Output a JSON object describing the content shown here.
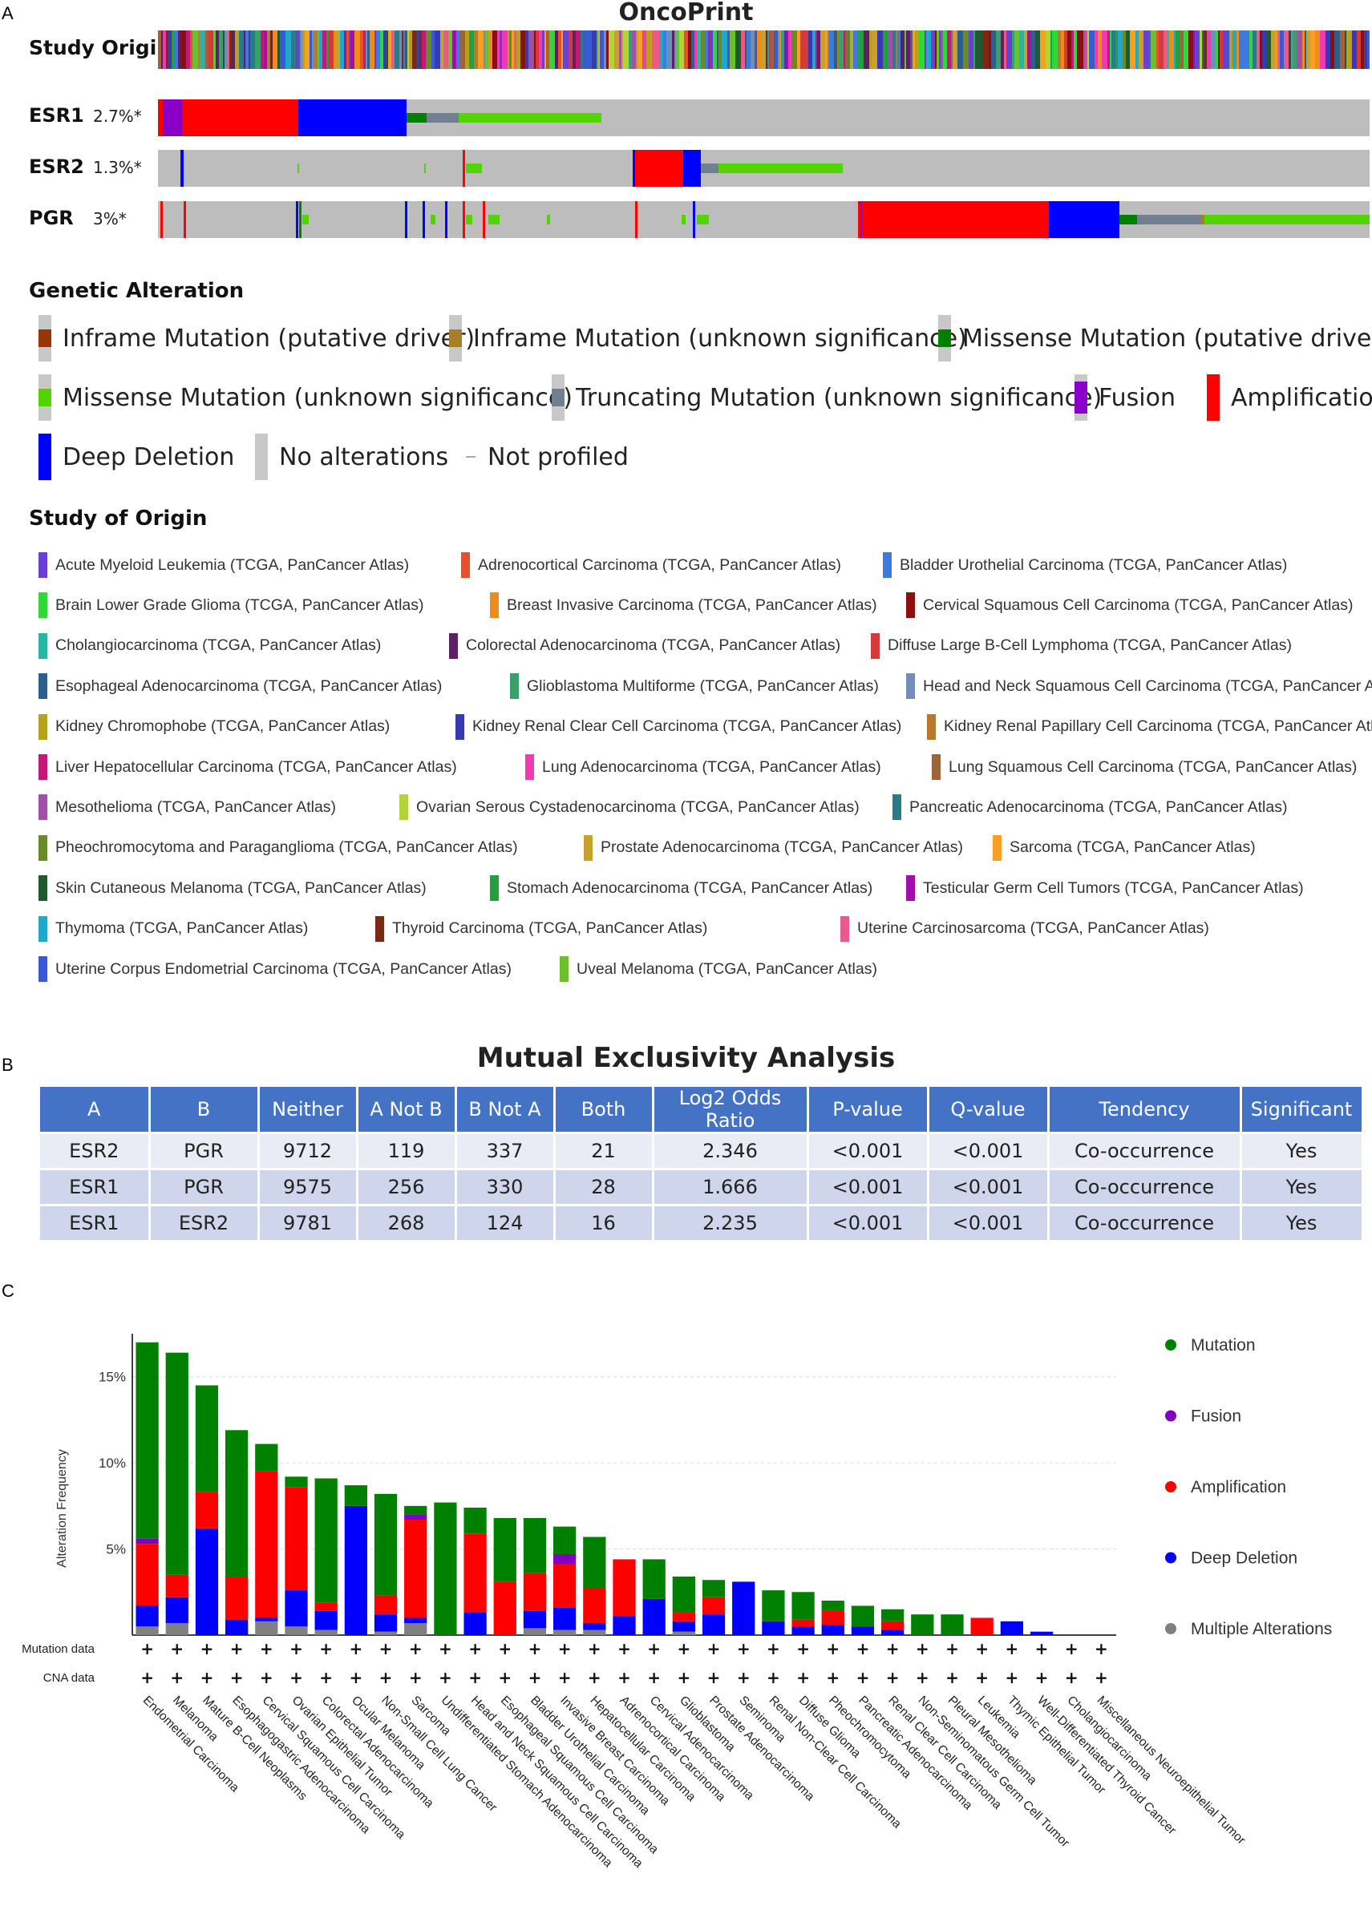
{
  "panel_labels": {
    "a": "A",
    "b": "B",
    "c": "C"
  },
  "oncoprint": {
    "title": "OncoPrint",
    "study_origin_label": "Study Origin",
    "genes": [
      {
        "name": "ESR1",
        "pct": "2.7%*"
      },
      {
        "name": "ESR2",
        "pct": "1.3%*"
      },
      {
        "name": "PGR",
        "pct": "3%*"
      }
    ],
    "colors": {
      "no_alteration": "#bdbdbd",
      "amplification": "#ff0000",
      "deep_deletion": "#0000ff",
      "fusion": "#8b00c9",
      "missense_putative": "#008000",
      "missense_unknown": "#53d400",
      "truncating_unknown": "#708090",
      "inframe_putative": "#993404",
      "inframe_unknown": "#a68028"
    }
  },
  "genetic_alteration": {
    "heading": "Genetic Alteration",
    "items": [
      {
        "label": "Inframe Mutation (putative driver)",
        "color": "#993404",
        "kind": "small"
      },
      {
        "label": "Inframe Mutation (unknown significance)",
        "color": "#a68028",
        "kind": "small"
      },
      {
        "label": "Missense Mutation (putative driver)",
        "color": "#008000",
        "kind": "small"
      },
      {
        "label": "Missense Mutation (unknown significance)",
        "color": "#53d400",
        "kind": "small"
      },
      {
        "label": "Truncating Mutation (unknown significance)",
        "color": "#708090",
        "kind": "small"
      },
      {
        "label": "Fusion",
        "color": "#8b00c9",
        "kind": "mid"
      },
      {
        "label": "Amplification",
        "color": "#ff0000",
        "kind": "full"
      },
      {
        "label": "Deep Deletion",
        "color": "#0000ff",
        "kind": "full"
      },
      {
        "label": "No alterations",
        "color": "#c8c8c8",
        "kind": "full"
      },
      {
        "label": "Not profiled",
        "color": "#ffffff",
        "kind": "dash"
      }
    ]
  },
  "study_of_origin": {
    "heading": "Study of Origin",
    "items": [
      {
        "label": "Acute Myeloid Leukemia (TCGA, PanCancer Atlas)",
        "color": "#6a3fd1"
      },
      {
        "label": "Adrenocortical Carcinoma (TCGA, PanCancer Atlas)",
        "color": "#e8502a"
      },
      {
        "label": "Bladder Urothelial Carcinoma (TCGA, PanCancer Atlas)",
        "color": "#3c7ae0"
      },
      {
        "label": "Brain Lower Grade Glioma (TCGA, PanCancer Atlas)",
        "color": "#33d63a"
      },
      {
        "label": "Breast Invasive Carcinoma (TCGA, PanCancer Atlas)",
        "color": "#f08a1c"
      },
      {
        "label": "Cervical Squamous Cell Carcinoma (TCGA, PanCancer Atlas)",
        "color": "#8a0f0f"
      },
      {
        "label": "Cholangiocarcinoma (TCGA, PanCancer Atlas)",
        "color": "#2bb3a6"
      },
      {
        "label": "Colorectal Adenocarcinoma (TCGA, PanCancer Atlas)",
        "color": "#5e1f66"
      },
      {
        "label": "Diffuse Large B-Cell Lymphoma (TCGA, PanCancer Atlas)",
        "color": "#d43a3a"
      },
      {
        "label": "Esophageal Adenocarcinoma (TCGA, PanCancer Atlas)",
        "color": "#2d5f8a"
      },
      {
        "label": "Glioblastoma Multiforme (TCGA, PanCancer Atlas)",
        "color": "#3aa06a"
      },
      {
        "label": "Head and Neck Squamous Cell Carcinoma (TCGA, PanCancer Atlas)",
        "color": "#6f8fb8"
      },
      {
        "label": "Kidney Chromophobe (TCGA, PanCancer Atlas)",
        "color": "#b5a020"
      },
      {
        "label": "Kidney Renal Clear Cell Carcinoma (TCGA, PanCancer Atlas)",
        "color": "#3a3ab0"
      },
      {
        "label": "Kidney Renal Papillary Cell Carcinoma (TCGA, PanCancer Atlas)",
        "color": "#b87a2a"
      },
      {
        "label": "Liver Hepatocellular Carcinoma (TCGA, PanCancer Atlas)",
        "color": "#c2187a"
      },
      {
        "label": "Lung Adenocarcinoma (TCGA, PanCancer Atlas)",
        "color": "#f03ab0"
      },
      {
        "label": "Lung Squamous Cell Carcinoma (TCGA, PanCancer Atlas)",
        "color": "#a0623a"
      },
      {
        "label": "Mesothelioma (TCGA, PanCancer Atlas)",
        "color": "#a050a8"
      },
      {
        "label": "Ovarian Serous Cystadenocarcinoma (TCGA, PanCancer Atlas)",
        "color": "#b0d43a"
      },
      {
        "label": "Pancreatic Adenocarcinoma (TCGA, PanCancer Atlas)",
        "color": "#2a7a88"
      },
      {
        "label": "Pheochromocytoma and Paraganglioma (TCGA, PanCancer Atlas)",
        "color": "#6a8a2a"
      },
      {
        "label": "Prostate Adenocarcinoma (TCGA, PanCancer Atlas)",
        "color": "#c8a030"
      },
      {
        "label": "Sarcoma (TCGA, PanCancer Atlas)",
        "color": "#f5a020"
      },
      {
        "label": "Skin Cutaneous Melanoma (TCGA, PanCancer Atlas)",
        "color": "#1f5a2f"
      },
      {
        "label": "Stomach Adenocarcinoma (TCGA, PanCancer Atlas)",
        "color": "#20a040"
      },
      {
        "label": "Testicular Germ Cell Tumors (TCGA, PanCancer Atlas)",
        "color": "#a010a8"
      },
      {
        "label": "Thymoma (TCGA, PanCancer Atlas)",
        "color": "#20a8c8"
      },
      {
        "label": "Thyroid Carcinoma (TCGA, PanCancer Atlas)",
        "color": "#7a2a10"
      },
      {
        "label": "Uterine Carcinosarcoma (TCGA, PanCancer Atlas)",
        "color": "#e85a8a"
      },
      {
        "label": "Uterine Corpus Endometrial Carcinoma (TCGA, PanCancer Atlas)",
        "color": "#3a5ad0"
      },
      {
        "label": "Uveal Melanoma (TCGA, PanCancer Atlas)",
        "color": "#6ac030"
      }
    ]
  },
  "mutual_exclusivity": {
    "title": "Mutual Exclusivity Analysis",
    "headers": [
      "A",
      "B",
      "Neither",
      "A Not B",
      "B Not A",
      "Both",
      "Log2 Odds Ratio",
      "P-value",
      "Q-value",
      "Tendency",
      "Significant"
    ],
    "rows": [
      [
        "ESR2",
        "PGR",
        "9712",
        "119",
        "337",
        "21",
        "2.346",
        "<0.001",
        "<0.001",
        "Co-occurrence",
        "Yes"
      ],
      [
        "ESR1",
        "PGR",
        "9575",
        "256",
        "330",
        "28",
        "1.666",
        "<0.001",
        "<0.001",
        "Co-occurrence",
        "Yes"
      ],
      [
        "ESR1",
        "ESR2",
        "9781",
        "268",
        "124",
        "16",
        "2.235",
        "<0.001",
        "<0.001",
        "Co-occurrence",
        "Yes"
      ]
    ]
  },
  "chart_data": {
    "type": "bar",
    "stacked": true,
    "title": "",
    "xlabel": "",
    "ylabel": "Alteration Frequency",
    "ylim": [
      0,
      17.5
    ],
    "yticks": [
      5,
      10,
      15
    ],
    "ytick_labels": [
      "5%",
      "10%",
      "15%"
    ],
    "grid": "horizontal dashed",
    "legend_position": "right",
    "row_labels": [
      "Mutation data",
      "CNA data"
    ],
    "row_marker": "+",
    "categories": [
      "Endometrial Carcinoma",
      "Melanoma",
      "Mature B-Cell Neoplasms",
      "Esophagogastric Adenocarcinoma",
      "Cervical Squamous Cell Carcinoma",
      "Ovarian Epithelial Tumor",
      "Colorectal Adenocarcinoma",
      "Ocular Melanoma",
      "Non-Small Cell Lung Cancer",
      "Sarcoma",
      "Undifferentiated Stomach Adenocarcinoma",
      "Head and Neck Squamous Cell Carcinoma",
      "Esophageal Squamous Cell Carcinoma",
      "Bladder Urothelial Carcinoma",
      "Invasive Breast Carcinoma",
      "Hepatocellular Carcinoma",
      "Adrenocortical Carcinoma",
      "Cervical Adenocarcinoma",
      "Glioblastoma",
      "Prostate Adenocarcinoma",
      "Seminoma",
      "Renal Non-Clear Cell Carcinoma",
      "Diffuse Glioma",
      "Pheochromocytoma",
      "Pancreatic Adenocarcinoma",
      "Renal Clear Cell Carcinoma",
      "Non-Seminomatous Germ Cell Tumor",
      "Pleural Mesothelioma",
      "Leukemia",
      "Thymic Epithelial Tumor",
      "Well-Differentiated Thyroid Cancer",
      "Cholangiocarcinoma",
      "Miscellaneous Neuroepithelial Tumor"
    ],
    "series": [
      {
        "name": "Multiple Alterations",
        "color": "#808080",
        "values": [
          0.5,
          0.7,
          0,
          0,
          0.8,
          0.5,
          0.3,
          0,
          0.2,
          0.7,
          0,
          0,
          0,
          0.4,
          0.3,
          0.3,
          0,
          0,
          0.2,
          0,
          0,
          0,
          0,
          0,
          0,
          0,
          0,
          0,
          0,
          0,
          0,
          0,
          0
        ]
      },
      {
        "name": "Deep Deletion",
        "color": "#0000ff",
        "values": [
          1.2,
          1.5,
          6.2,
          0.9,
          0.2,
          2.1,
          1.1,
          7.5,
          1.0,
          0.3,
          0,
          1.3,
          0,
          1.0,
          1.3,
          0.4,
          1.1,
          2.1,
          0.6,
          1.2,
          3.1,
          0.8,
          0.5,
          0.6,
          0.5,
          0.3,
          0,
          0,
          0,
          0.8,
          0.2,
          0,
          0
        ]
      },
      {
        "name": "Amplification",
        "color": "#ff0000",
        "values": [
          3.6,
          1.3,
          2.1,
          2.5,
          8.5,
          6.0,
          0.5,
          0,
          1.1,
          5.7,
          0,
          4.6,
          3.1,
          2.2,
          2.5,
          2.0,
          3.3,
          0,
          0.5,
          1.0,
          0,
          0,
          0.4,
          0.8,
          0,
          0.5,
          0,
          0,
          1.0,
          0,
          0,
          0,
          0
        ]
      },
      {
        "name": "Fusion",
        "color": "#8000c0",
        "values": [
          0.3,
          0,
          0,
          0,
          0,
          0,
          0,
          0,
          0,
          0.3,
          0,
          0,
          0,
          0,
          0.6,
          0,
          0,
          0,
          0,
          0,
          0,
          0,
          0,
          0,
          0,
          0,
          0,
          0,
          0,
          0,
          0,
          0,
          0
        ]
      },
      {
        "name": "Mutation",
        "color": "#008000",
        "values": [
          11.4,
          12.9,
          6.2,
          8.5,
          1.6,
          0.6,
          7.2,
          1.2,
          5.9,
          0.5,
          7.7,
          1.5,
          3.7,
          3.2,
          1.6,
          3.0,
          0,
          2.3,
          2.1,
          1.0,
          0,
          1.8,
          1.6,
          0.6,
          1.2,
          0.7,
          1.2,
          1.2,
          0,
          0,
          0,
          0,
          0
        ]
      }
    ],
    "legend_order": [
      "Mutation",
      "Fusion",
      "Amplification",
      "Deep Deletion",
      "Multiple Alterations"
    ]
  }
}
